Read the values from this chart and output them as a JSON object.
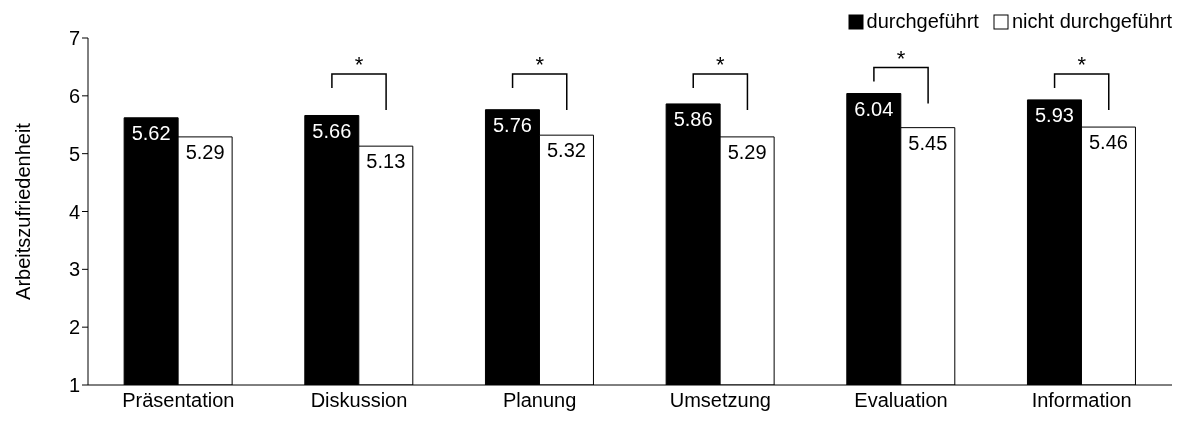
{
  "chart_data": {
    "type": "bar",
    "ylabel": "Arbeitszufriedenheit",
    "categories": [
      "Präsentation",
      "Diskussion",
      "Planung",
      "Umsetzung",
      "Evaluation",
      "Information"
    ],
    "series": [
      {
        "name": "durchgeführt",
        "color": "#000000",
        "values": [
          5.62,
          5.66,
          5.76,
          5.86,
          6.04,
          5.93
        ]
      },
      {
        "name": "nicht durchgeführt",
        "color": "#ffffff",
        "values": [
          5.29,
          5.13,
          5.32,
          5.29,
          5.45,
          5.46
        ]
      }
    ],
    "ylim": [
      1,
      7
    ],
    "yticks": [
      1,
      2,
      3,
      4,
      5,
      6,
      7
    ],
    "grid": false,
    "legend": "top right",
    "data_labels": true,
    "annotations": [
      "*",
      "*",
      "*",
      "*",
      "*"
    ]
  }
}
